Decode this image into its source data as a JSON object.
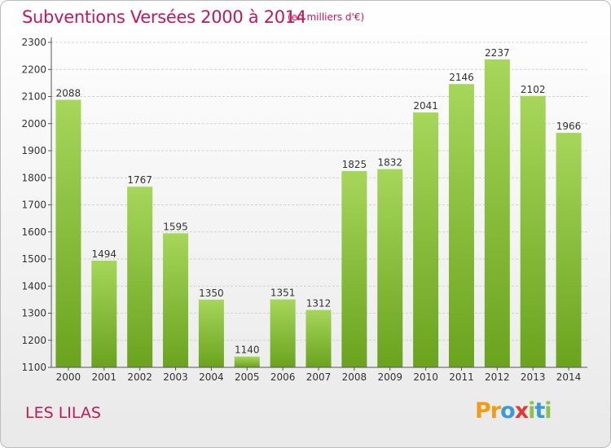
{
  "title": "Subventions Versées 2000 à 2014",
  "subtitle": "(en milliers d'€)",
  "footer_label": "LES LILAS",
  "brand": {
    "letters": [
      "P",
      "r",
      "o",
      "x",
      "i",
      "t",
      "i"
    ],
    "colors": [
      "#f39c12",
      "#f39c12",
      "#3b9bd8",
      "#e53935",
      "#8bc34a",
      "#3b9bd8",
      "#8bc34a"
    ]
  },
  "chart_data": {
    "type": "bar",
    "title": "Subventions Versées 2000 à 2014",
    "subtitle": "(en milliers d'€)",
    "categories": [
      "2000",
      "2001",
      "2002",
      "2003",
      "2004",
      "2005",
      "2006",
      "2007",
      "2008",
      "2009",
      "2010",
      "2011",
      "2012",
      "2013",
      "2014"
    ],
    "values": [
      2088,
      1494,
      1767,
      1595,
      1350,
      1140,
      1351,
      1312,
      1825,
      1832,
      2041,
      2146,
      2237,
      2102,
      1966
    ],
    "ylim": [
      1100,
      2300
    ],
    "yticks": [
      1100,
      1200,
      1300,
      1400,
      1500,
      1600,
      1700,
      1800,
      1900,
      2000,
      2100,
      2200,
      2300
    ],
    "grid": true,
    "bar_color_top": "#a6d65a",
    "bar_color_bottom": "#6aa31e"
  }
}
